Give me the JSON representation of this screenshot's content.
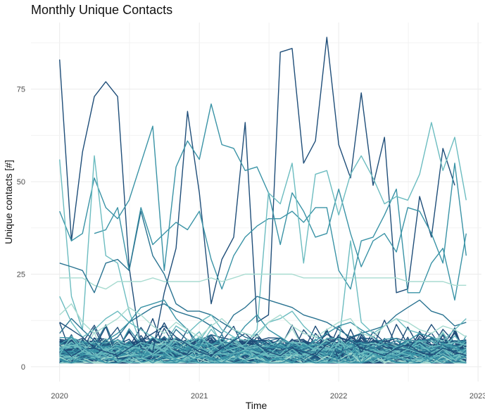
{
  "chart_data": {
    "type": "line",
    "title": "Monthly Unique Contacts",
    "xlabel": "Time",
    "ylabel": "Unique contacts [#]",
    "x_tick_labels": [
      "2020",
      "2021",
      "2022",
      "2023"
    ],
    "y_tick_labels": [
      "0",
      "25",
      "50",
      "75"
    ],
    "y_ticks": [
      0,
      25,
      50,
      75
    ],
    "xlim": [
      "2019-10-18",
      "2023-01-10"
    ],
    "ylim": [
      -4,
      93
    ],
    "grid": true,
    "legend": "none",
    "months": [
      "2020-01",
      "2020-02",
      "2020-03",
      "2020-04",
      "2020-05",
      "2020-06",
      "2020-07",
      "2020-08",
      "2020-09",
      "2020-10",
      "2020-11",
      "2020-12",
      "2021-01",
      "2021-02",
      "2021-03",
      "2021-04",
      "2021-05",
      "2021-06",
      "2021-07",
      "2021-08",
      "2021-09",
      "2021-10",
      "2021-11",
      "2021-12",
      "2022-01",
      "2022-02",
      "2022-03",
      "2022-04",
      "2022-05",
      "2022-06",
      "2022-07",
      "2022-08",
      "2022-09",
      "2022-10",
      "2022-11",
      "2022-12"
    ],
    "palette": [
      "#1f4e79",
      "#2a7391",
      "#3a93a6",
      "#6cbcc0",
      "#a8dbd0"
    ],
    "background_series_count": 120,
    "series": [
      {
        "color": "#1f4e79",
        "values": [
          83,
          34,
          58,
          73,
          77,
          73,
          27,
          5,
          4,
          20,
          32,
          69,
          47,
          17,
          29,
          35,
          66,
          12,
          14,
          85,
          86,
          55,
          61,
          89,
          60,
          51,
          74,
          49,
          62,
          20,
          21,
          46,
          35,
          59,
          49,
          null
        ]
      },
      {
        "color": "#3a93a6",
        "values": [
          42,
          34,
          36,
          51,
          43,
          40,
          45,
          55,
          65,
          26,
          54,
          61,
          56,
          71,
          60,
          59,
          53,
          54,
          47,
          33,
          47,
          42,
          35,
          36,
          48,
          36,
          27,
          34,
          36,
          31,
          43,
          42,
          36,
          28,
          55,
          30
        ]
      },
      {
        "color": "#3a93a6",
        "values": [
          null,
          null,
          null,
          36,
          37,
          43,
          26,
          43,
          33,
          36,
          39,
          37,
          42,
          29,
          21,
          30,
          35,
          38,
          40,
          40,
          42,
          39,
          43,
          43,
          26,
          21,
          34,
          35,
          41,
          48,
          20,
          20,
          28,
          32,
          18,
          36
        ]
      },
      {
        "color": "#6cbcc0",
        "values": [
          56,
          19,
          10,
          57,
          30,
          28,
          15,
          6,
          3,
          5,
          8,
          6,
          8,
          6,
          4,
          5,
          6,
          10,
          47,
          44,
          55,
          28,
          52,
          53,
          41,
          52,
          57,
          51,
          44,
          46,
          45,
          52,
          66,
          53,
          62,
          45
        ]
      },
      {
        "color": "#a8dbd0",
        "values": [
          24,
          24,
          24,
          22,
          21,
          23,
          23,
          23,
          24,
          23,
          23,
          23,
          23,
          24,
          23,
          24,
          25,
          25,
          25,
          25,
          25,
          24,
          24,
          24,
          24,
          24,
          24,
          24,
          24,
          24,
          23,
          23,
          23,
          23,
          22,
          22
        ]
      },
      {
        "color": "#2a7391",
        "values": [
          28,
          27,
          26,
          20,
          28,
          29,
          26,
          42,
          30,
          25,
          17,
          15,
          15,
          14,
          12,
          10,
          8,
          7,
          6,
          5,
          5,
          4,
          4,
          4,
          4,
          5,
          6,
          5,
          6,
          7,
          5,
          4,
          4,
          6,
          4,
          5
        ]
      },
      {
        "color": "#2a7391",
        "values": [
          9,
          13,
          10,
          7,
          6,
          8,
          12,
          14,
          16,
          17,
          15,
          14,
          13,
          11,
          9,
          14,
          16,
          19,
          18,
          17,
          16,
          14,
          13,
          12,
          10,
          8,
          9,
          10,
          11,
          14,
          16,
          18,
          15,
          14,
          11,
          12
        ]
      },
      {
        "color": "#6cbcc0",
        "values": [
          19,
          12,
          8,
          10,
          13,
          15,
          12,
          10,
          8,
          6,
          11,
          9,
          12,
          14,
          10,
          8,
          7,
          9,
          12,
          13,
          15,
          11,
          8,
          7,
          6,
          34,
          12,
          9,
          11,
          13,
          10,
          9,
          8,
          7,
          10,
          13
        ]
      },
      {
        "color": "#3a93a6",
        "values": [
          6,
          8,
          5,
          4,
          7,
          9,
          12,
          16,
          17,
          18,
          13,
          10,
          6,
          5,
          4,
          7,
          11,
          14,
          10,
          8,
          6,
          5,
          7,
          9,
          11,
          12,
          10,
          8,
          6,
          5,
          7,
          9,
          8,
          6,
          5,
          4
        ]
      },
      {
        "color": "#1f4e79",
        "values": [
          12,
          10,
          8,
          5,
          4,
          3,
          5,
          7,
          9,
          11,
          8,
          6,
          4,
          3,
          5,
          7,
          9,
          6,
          4,
          3,
          5,
          4,
          3,
          6,
          8,
          7,
          5,
          4,
          3,
          5,
          6,
          4,
          3,
          5,
          4,
          3
        ]
      },
      {
        "color": "#a8dbd0",
        "values": [
          14,
          17,
          12,
          9,
          11,
          13,
          16,
          14,
          11,
          9,
          12,
          10,
          8,
          11,
          13,
          10,
          9,
          8,
          12,
          14,
          11,
          9,
          8,
          10,
          12,
          13,
          9,
          8,
          11,
          13,
          12,
          10,
          9,
          11,
          10,
          8
        ]
      }
    ]
  }
}
